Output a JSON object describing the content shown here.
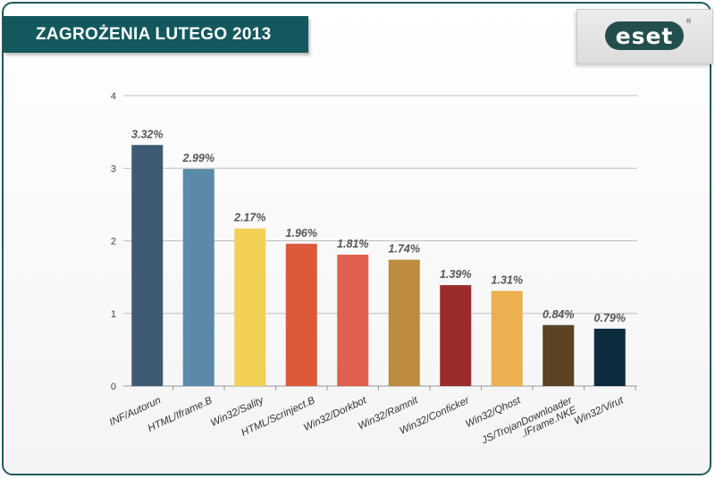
{
  "header": {
    "title": "ZAGROŻENIA LUTEGO 2013",
    "logo_text": "eset",
    "logo_mark": "®"
  },
  "colors": {
    "banner": "#12585c",
    "frame": "#1f5a5e",
    "value_label": "#555555"
  },
  "chart_data": {
    "type": "bar",
    "title": "",
    "xlabel": "",
    "ylabel": "",
    "ylim": [
      0,
      4
    ],
    "yticks": [
      0,
      1,
      2,
      3,
      4
    ],
    "grid": true,
    "categories": [
      "INF/Autorun",
      "HTML/Iframe.B",
      "Win32/Sality",
      "HTML/Scrinject.B",
      "Win32/Dorkbot",
      "Win32/Ramnit",
      "Win32/Conficker",
      "Win32/Qhost",
      "JS/TrojanDownloader\n.IFrame.NKE",
      "Win32/Virut"
    ],
    "values": [
      3.32,
      2.99,
      2.17,
      1.96,
      1.81,
      1.74,
      1.39,
      1.31,
      0.84,
      0.79
    ],
    "value_labels": [
      "3.32%",
      "2.99%",
      "2.17%",
      "1.96%",
      "1.81%",
      "1.74%",
      "1.39%",
      "1.31%",
      "0.84%",
      "0.79%"
    ],
    "bar_colors": [
      "#3e5a74",
      "#5a8aa8",
      "#f2d055",
      "#dc5a3a",
      "#e06050",
      "#bc8b3f",
      "#9a2d2c",
      "#ecb050",
      "#5a4223",
      "#0c2c3e"
    ]
  }
}
